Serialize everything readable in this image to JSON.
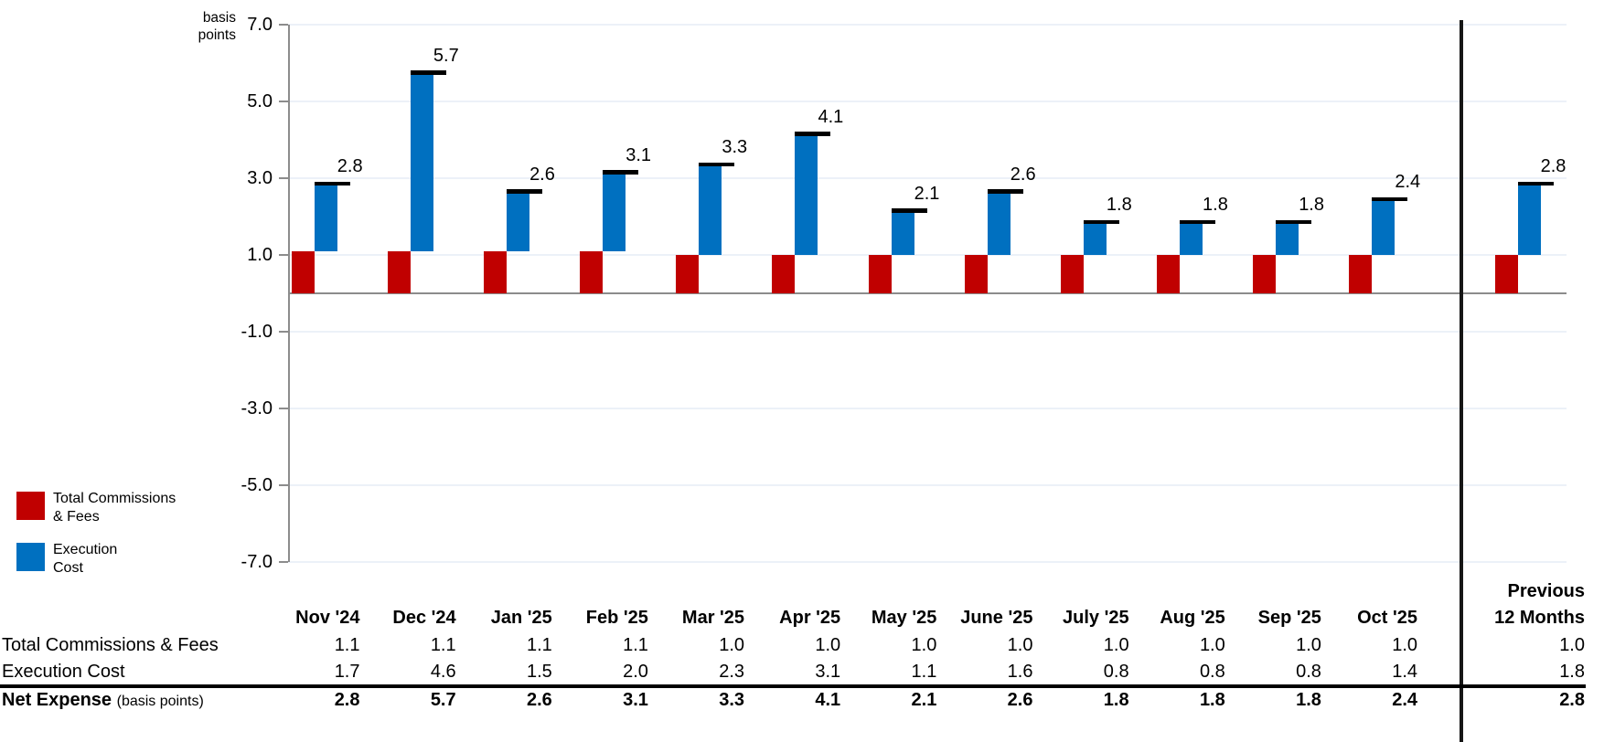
{
  "chart": {
    "unit_label_lines": [
      "basis",
      "points"
    ],
    "y_tick_labels": [
      "7.0",
      "5.0",
      "3.0",
      "1.0",
      "-1.0",
      "-3.0",
      "-5.0",
      "-7.0"
    ],
    "legend": [
      {
        "lines": [
          "Total Commissions",
          "& Fees"
        ],
        "color": "#C00000"
      },
      {
        "lines": [
          "Execution",
          "Cost"
        ],
        "color": "#0070C0"
      }
    ]
  },
  "chart_data": {
    "type": "bar",
    "stacked": true,
    "title": "",
    "ylabel": "basis points",
    "ylim": [
      -7.0,
      7.0
    ],
    "ytick_interval": 2.0,
    "grid": true,
    "legend_position": "bottom-left",
    "categories": [
      "Nov '24",
      "Dec '24",
      "Jan '25",
      "Feb '25",
      "Mar '25",
      "Apr '25",
      "May '25",
      "June '25",
      "July '25",
      "Aug '25",
      "Sep '25",
      "Oct '25",
      "Previous 12 Months"
    ],
    "series": [
      {
        "name": "Total Commissions & Fees",
        "color": "#C00000",
        "values": [
          1.1,
          1.1,
          1.1,
          1.1,
          1.0,
          1.0,
          1.0,
          1.0,
          1.0,
          1.0,
          1.0,
          1.0,
          1.0
        ]
      },
      {
        "name": "Execution Cost",
        "color": "#0070C0",
        "values": [
          1.7,
          4.6,
          1.5,
          2.0,
          2.3,
          3.1,
          1.1,
          1.6,
          0.8,
          0.8,
          0.8,
          1.4,
          1.8
        ]
      }
    ],
    "net_expense_markers": {
      "name": "Net Expense",
      "marker_color": "#000000",
      "values": [
        2.8,
        5.7,
        2.6,
        3.1,
        3.3,
        4.1,
        2.1,
        2.6,
        1.8,
        1.8,
        1.8,
        2.4,
        2.8
      ],
      "labels": [
        "2.8",
        "5.7",
        "2.6",
        "3.1",
        "3.3",
        "4.1",
        "2.1",
        "2.6",
        "1.8",
        "1.8",
        "1.8",
        "2.4",
        "2.8"
      ]
    }
  },
  "table": {
    "month_headers": [
      "Nov '24",
      "Dec '24",
      "Jan '25",
      "Feb '25",
      "Mar '25",
      "Apr '25",
      "May '25",
      "June '25",
      "July '25",
      "Aug '25",
      "Sep '25",
      "Oct '25"
    ],
    "summary_header_lines": [
      "Previous",
      "12 Months"
    ],
    "rows": [
      {
        "label": "Total Commissions & Fees",
        "bold": false,
        "values": [
          "1.1",
          "1.1",
          "1.1",
          "1.1",
          "1.0",
          "1.0",
          "1.0",
          "1.0",
          "1.0",
          "1.0",
          "1.0",
          "1.0"
        ],
        "summary": "1.0"
      },
      {
        "label": "Execution Cost",
        "bold": false,
        "values": [
          "1.7",
          "4.6",
          "1.5",
          "2.0",
          "2.3",
          "3.1",
          "1.1",
          "1.6",
          "0.8",
          "0.8",
          "0.8",
          "1.4"
        ],
        "summary": "1.8"
      },
      {
        "label": "Net Expense",
        "label_suffix": "(basis points)",
        "bold": true,
        "values": [
          "2.8",
          "5.7",
          "2.6",
          "3.1",
          "3.3",
          "4.1",
          "2.1",
          "2.6",
          "1.8",
          "1.8",
          "1.8",
          "2.4"
        ],
        "summary": "2.8"
      }
    ]
  }
}
